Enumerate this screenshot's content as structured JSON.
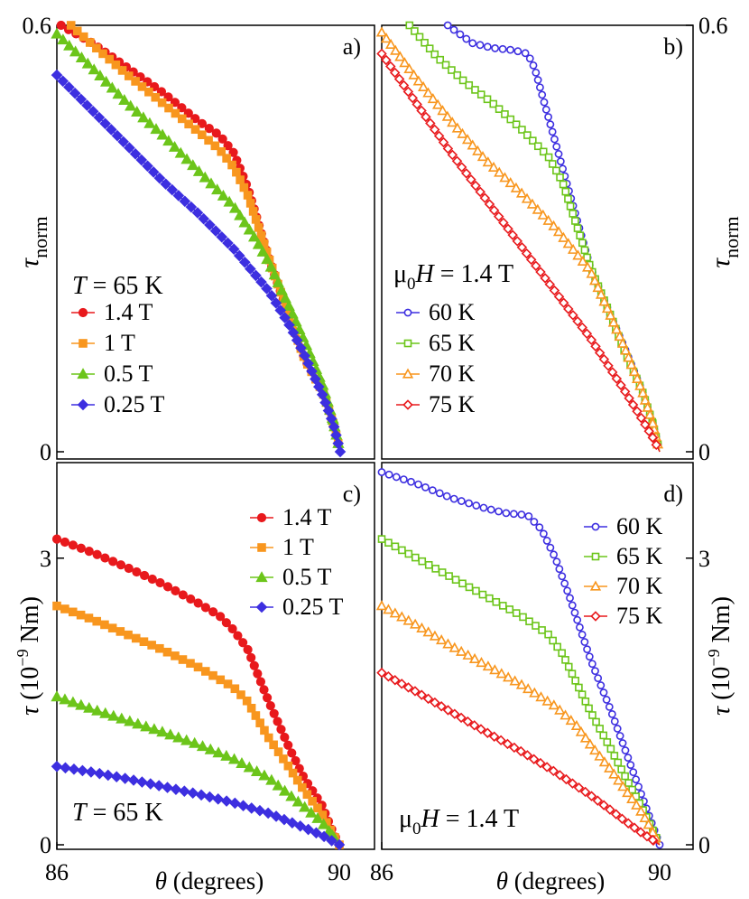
{
  "chart_data": [
    {
      "id": "a",
      "type": "line",
      "panel_label": "a)",
      "ylabel": "τnorm",
      "ylabel_main": "τ",
      "ylabel_sub": "norm",
      "xlim": [
        86,
        90
      ],
      "ylim": [
        0,
        0.6
      ],
      "y_ticks": [
        {
          "value": 0,
          "label": "0"
        },
        {
          "value": 0.6,
          "label": "0.6"
        }
      ],
      "legend_title": {
        "italic": "T",
        "rest": " = 65 K"
      },
      "marker_fill": "filled",
      "series": [
        {
          "name": "1.4 T",
          "color": "#e8191c",
          "marker": "circle",
          "points": [
            [
              86.06,
              0.6
            ],
            [
              86.5,
              0.575
            ],
            [
              87.0,
              0.54
            ],
            [
              87.5,
              0.505
            ],
            [
              88.0,
              0.465
            ],
            [
              88.3,
              0.445
            ],
            [
              88.5,
              0.42
            ],
            [
              88.7,
              0.37
            ],
            [
              89.0,
              0.27
            ],
            [
              89.3,
              0.185
            ],
            [
              89.5,
              0.13
            ],
            [
              89.75,
              0.085
            ],
            [
              89.9,
              0.04
            ],
            [
              90.0,
              0.0
            ]
          ]
        },
        {
          "name": "1 T",
          "color": "#f8961e",
          "marker": "square",
          "points": [
            [
              86.2,
              0.6
            ],
            [
              86.5,
              0.573
            ],
            [
              87.0,
              0.53
            ],
            [
              87.5,
              0.49
            ],
            [
              88.0,
              0.45
            ],
            [
              88.3,
              0.425
            ],
            [
              88.5,
              0.4
            ],
            [
              88.7,
              0.36
            ],
            [
              89.0,
              0.27
            ],
            [
              89.3,
              0.185
            ],
            [
              89.5,
              0.13
            ],
            [
              89.75,
              0.085
            ],
            [
              89.9,
              0.04
            ],
            [
              90.0,
              0.0
            ]
          ]
        },
        {
          "name": "0.5 T",
          "color": "#6cc51a",
          "marker": "triangle",
          "points": [
            [
              86.0,
              0.588
            ],
            [
              86.5,
              0.54
            ],
            [
              87.0,
              0.49
            ],
            [
              87.5,
              0.445
            ],
            [
              88.0,
              0.395
            ],
            [
              88.5,
              0.345
            ],
            [
              88.8,
              0.3
            ],
            [
              89.0,
              0.265
            ],
            [
              89.3,
              0.2
            ],
            [
              89.5,
              0.155
            ],
            [
              89.75,
              0.095
            ],
            [
              89.9,
              0.045
            ],
            [
              90.0,
              0.0
            ]
          ]
        },
        {
          "name": "0.25 T",
          "color": "#3d2fe0",
          "marker": "diamond",
          "points": [
            [
              86.0,
              0.53
            ],
            [
              86.5,
              0.48
            ],
            [
              87.0,
              0.43
            ],
            [
              87.5,
              0.38
            ],
            [
              88.0,
              0.335
            ],
            [
              88.5,
              0.285
            ],
            [
              89.0,
              0.225
            ],
            [
              89.3,
              0.175
            ],
            [
              89.5,
              0.135
            ],
            [
              89.75,
              0.08
            ],
            [
              89.9,
              0.04
            ],
            [
              90.0,
              0.0
            ]
          ]
        }
      ]
    },
    {
      "id": "b",
      "type": "line",
      "panel_label": "b)",
      "ylabel": "τnorm",
      "ylabel_main": "τ",
      "ylabel_sub": "norm",
      "xlim": [
        86,
        90
      ],
      "ylim": [
        0,
        0.6
      ],
      "y_ticks": [
        {
          "value": 0,
          "label": "0"
        },
        {
          "value": 0.6,
          "label": "0.6"
        }
      ],
      "legend_title": {
        "pre": "μ",
        "sub": "0",
        "italic": "H",
        "rest": " = 1.4 T"
      },
      "marker_fill": "open",
      "series": [
        {
          "name": "60 K",
          "color": "#3d2fe0",
          "marker": "circle",
          "points": [
            [
              86.95,
              0.6
            ],
            [
              87.3,
              0.575
            ],
            [
              87.6,
              0.568
            ],
            [
              87.9,
              0.565
            ],
            [
              88.1,
              0.56
            ],
            [
              88.2,
              0.54
            ],
            [
              88.4,
              0.47
            ],
            [
              88.6,
              0.4
            ],
            [
              88.8,
              0.33
            ],
            [
              89.0,
              0.26
            ],
            [
              89.3,
              0.19
            ],
            [
              89.5,
              0.145
            ],
            [
              89.75,
              0.085
            ],
            [
              89.9,
              0.04
            ],
            [
              90.0,
              0.0
            ]
          ]
        },
        {
          "name": "65 K",
          "color": "#6cc51a",
          "marker": "square",
          "points": [
            [
              86.4,
              0.6
            ],
            [
              86.8,
              0.555
            ],
            [
              87.2,
              0.52
            ],
            [
              87.6,
              0.49
            ],
            [
              88.0,
              0.455
            ],
            [
              88.4,
              0.415
            ],
            [
              88.6,
              0.38
            ],
            [
              88.8,
              0.32
            ],
            [
              89.0,
              0.26
            ],
            [
              89.3,
              0.19
            ],
            [
              89.5,
              0.14
            ],
            [
              89.75,
              0.085
            ],
            [
              89.9,
              0.04
            ],
            [
              90.0,
              0.0
            ]
          ]
        },
        {
          "name": "70 K",
          "color": "#f8961e",
          "marker": "triangle",
          "points": [
            [
              86.0,
              0.59
            ],
            [
              86.5,
              0.525
            ],
            [
              87.0,
              0.465
            ],
            [
              87.5,
              0.41
            ],
            [
              88.0,
              0.365
            ],
            [
              88.5,
              0.315
            ],
            [
              89.0,
              0.255
            ],
            [
              89.3,
              0.19
            ],
            [
              89.5,
              0.145
            ],
            [
              89.75,
              0.085
            ],
            [
              89.9,
              0.04
            ],
            [
              90.0,
              0.0
            ]
          ]
        },
        {
          "name": "75 K",
          "color": "#e8191c",
          "marker": "diamond",
          "points": [
            [
              86.0,
              0.56
            ],
            [
              86.5,
              0.49
            ],
            [
              87.0,
              0.42
            ],
            [
              87.5,
              0.355
            ],
            [
              88.0,
              0.29
            ],
            [
              88.5,
              0.225
            ],
            [
              89.0,
              0.16
            ],
            [
              89.3,
              0.115
            ],
            [
              89.5,
              0.085
            ],
            [
              89.75,
              0.045
            ],
            [
              89.9,
              0.02
            ],
            [
              90.0,
              0.0
            ]
          ]
        }
      ]
    },
    {
      "id": "c",
      "type": "line",
      "panel_label": "c)",
      "ylabel": "τ (10−9 Nm)",
      "ylabel_main": "τ",
      "ylabel_pre": " (10",
      "ylabel_sup": "−9",
      "ylabel_post": " Nm)",
      "xlabel": "θ (degrees)",
      "xlabel_italic": "θ",
      "xlabel_rest": " (degrees)",
      "xlim": [
        86,
        90
      ],
      "ylim": [
        0,
        4.0
      ],
      "x_ticks": [
        {
          "value": 86,
          "label": "86"
        },
        {
          "value": 90,
          "label": "90"
        }
      ],
      "y_ticks": [
        {
          "value": 0,
          "label": "0"
        },
        {
          "value": 3,
          "label": "3"
        }
      ],
      "legend_title": {
        "italic": "T",
        "rest": " = 65 K"
      },
      "marker_fill": "filled",
      "series": [
        {
          "name": "1.4 T",
          "color": "#e8191c",
          "marker": "circle",
          "points": [
            [
              86.0,
              3.2
            ],
            [
              86.5,
              3.06
            ],
            [
              87.0,
              2.9
            ],
            [
              87.5,
              2.73
            ],
            [
              88.0,
              2.53
            ],
            [
              88.3,
              2.4
            ],
            [
              88.5,
              2.25
            ],
            [
              88.7,
              2.05
            ],
            [
              89.0,
              1.5
            ],
            [
              89.3,
              1.0
            ],
            [
              89.5,
              0.7
            ],
            [
              89.75,
              0.42
            ],
            [
              89.9,
              0.15
            ],
            [
              90.0,
              0.0
            ]
          ]
        },
        {
          "name": "1 T",
          "color": "#f8961e",
          "marker": "square",
          "points": [
            [
              86.0,
              2.5
            ],
            [
              86.5,
              2.36
            ],
            [
              87.0,
              2.2
            ],
            [
              87.5,
              2.04
            ],
            [
              88.0,
              1.86
            ],
            [
              88.5,
              1.65
            ],
            [
              88.7,
              1.5
            ],
            [
              89.0,
              1.12
            ],
            [
              89.3,
              0.8
            ],
            [
              89.5,
              0.57
            ],
            [
              89.75,
              0.33
            ],
            [
              89.9,
              0.12
            ],
            [
              90.0,
              0.0
            ]
          ]
        },
        {
          "name": "0.5 T",
          "color": "#6cc51a",
          "marker": "triangle",
          "points": [
            [
              86.0,
              1.55
            ],
            [
              86.5,
              1.42
            ],
            [
              87.0,
              1.3
            ],
            [
              87.5,
              1.18
            ],
            [
              88.0,
              1.05
            ],
            [
              88.5,
              0.9
            ],
            [
              89.0,
              0.7
            ],
            [
              89.3,
              0.52
            ],
            [
              89.5,
              0.4
            ],
            [
              89.75,
              0.24
            ],
            [
              89.9,
              0.1
            ],
            [
              90.0,
              0.0
            ]
          ]
        },
        {
          "name": "0.25 T",
          "color": "#3d2fe0",
          "marker": "diamond",
          "points": [
            [
              86.0,
              0.82
            ],
            [
              86.5,
              0.76
            ],
            [
              87.0,
              0.69
            ],
            [
              87.5,
              0.61
            ],
            [
              88.0,
              0.53
            ],
            [
              88.5,
              0.44
            ],
            [
              89.0,
              0.33
            ],
            [
              89.3,
              0.24
            ],
            [
              89.5,
              0.18
            ],
            [
              89.75,
              0.1
            ],
            [
              89.9,
              0.04
            ],
            [
              90.0,
              0.0
            ]
          ]
        }
      ]
    },
    {
      "id": "d",
      "type": "line",
      "panel_label": "d)",
      "ylabel": "τ (10−9 Nm)",
      "ylabel_main": "τ",
      "ylabel_pre": " (10",
      "ylabel_sup": "−9",
      "ylabel_post": " Nm)",
      "xlabel": "θ (degrees)",
      "xlabel_italic": "θ",
      "xlabel_rest": " (degrees)",
      "xlim": [
        86,
        90
      ],
      "ylim": [
        0,
        4.0
      ],
      "x_ticks": [
        {
          "value": 86,
          "label": "86"
        },
        {
          "value": 90,
          "label": "90"
        }
      ],
      "y_ticks": [
        {
          "value": 0,
          "label": "0"
        },
        {
          "value": 3,
          "label": "3"
        }
      ],
      "legend_title": {
        "pre": "μ",
        "sub": "0",
        "italic": "H",
        "rest": " = 1.4 T"
      },
      "marker_fill": "open",
      "series": [
        {
          "name": "60 K",
          "color": "#3d2fe0",
          "marker": "circle",
          "points": [
            [
              86.0,
              3.9
            ],
            [
              86.5,
              3.78
            ],
            [
              87.0,
              3.63
            ],
            [
              87.5,
              3.52
            ],
            [
              87.8,
              3.47
            ],
            [
              88.1,
              3.45
            ],
            [
              88.3,
              3.3
            ],
            [
              88.5,
              3.0
            ],
            [
              88.7,
              2.6
            ],
            [
              89.0,
              1.95
            ],
            [
              89.3,
              1.4
            ],
            [
              89.5,
              1.0
            ],
            [
              89.75,
              0.5
            ],
            [
              89.9,
              0.2
            ],
            [
              90.0,
              0.0
            ]
          ]
        },
        {
          "name": "65 K",
          "color": "#6cc51a",
          "marker": "square",
          "points": [
            [
              86.0,
              3.2
            ],
            [
              86.5,
              3.0
            ],
            [
              87.0,
              2.8
            ],
            [
              87.5,
              2.6
            ],
            [
              88.0,
              2.4
            ],
            [
              88.4,
              2.2
            ],
            [
              88.6,
              2.0
            ],
            [
              88.8,
              1.7
            ],
            [
              89.0,
              1.4
            ],
            [
              89.3,
              1.0
            ],
            [
              89.5,
              0.72
            ],
            [
              89.75,
              0.38
            ],
            [
              89.9,
              0.15
            ],
            [
              90.0,
              0.0
            ]
          ]
        },
        {
          "name": "70 K",
          "color": "#f8961e",
          "marker": "triangle",
          "points": [
            [
              86.0,
              2.5
            ],
            [
              86.5,
              2.3
            ],
            [
              87.0,
              2.08
            ],
            [
              87.5,
              1.88
            ],
            [
              88.0,
              1.68
            ],
            [
              88.5,
              1.45
            ],
            [
              88.8,
              1.25
            ],
            [
              89.0,
              1.05
            ],
            [
              89.3,
              0.78
            ],
            [
              89.5,
              0.58
            ],
            [
              89.75,
              0.33
            ],
            [
              89.9,
              0.13
            ],
            [
              90.0,
              0.0
            ]
          ]
        },
        {
          "name": "75 K",
          "color": "#e8191c",
          "marker": "diamond",
          "points": [
            [
              86.0,
              1.8
            ],
            [
              86.5,
              1.6
            ],
            [
              87.0,
              1.39
            ],
            [
              87.5,
              1.18
            ],
            [
              88.0,
              0.98
            ],
            [
              88.5,
              0.76
            ],
            [
              89.0,
              0.52
            ],
            [
              89.3,
              0.36
            ],
            [
              89.5,
              0.25
            ],
            [
              89.75,
              0.12
            ],
            [
              89.9,
              0.05
            ],
            [
              90.0,
              0.0
            ]
          ]
        }
      ]
    }
  ]
}
